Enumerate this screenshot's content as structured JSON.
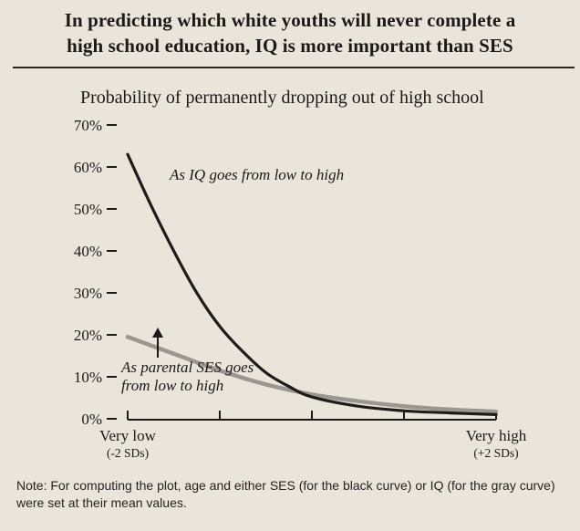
{
  "header": {
    "title_line1": "In predicting which white youths will never complete a",
    "title_line2": "high school education, IQ is more important than SES"
  },
  "chart_data": {
    "type": "line",
    "subtitle": "Probability of permanently dropping out of high school",
    "ylim": [
      0,
      70
    ],
    "y_ticks": [
      "0%",
      "10%",
      "20%",
      "30%",
      "40%",
      "50%",
      "60%",
      "70%"
    ],
    "x_ticks": [
      {
        "label": "Very low",
        "sublabel": "(-2 SDs)"
      },
      {
        "label": "",
        "sublabel": ""
      },
      {
        "label": "",
        "sublabel": ""
      },
      {
        "label": "",
        "sublabel": ""
      },
      {
        "label": "Very high",
        "sublabel": "(+2 SDs)"
      }
    ],
    "xlim": [
      -2,
      2
    ],
    "series": [
      {
        "name": "IQ",
        "color": "#1e1c1a",
        "x": [
          -2,
          -1.75,
          -1.5,
          -1.25,
          -1,
          -0.75,
          -0.5,
          -0.25,
          0,
          0.5,
          1,
          1.5,
          2
        ],
        "y": [
          63,
          51,
          40,
          30,
          22,
          16,
          11,
          7.7,
          5.2,
          3.0,
          1.9,
          1.4,
          1.0
        ]
      },
      {
        "name": "parental SES",
        "color": "#9a9690",
        "x": [
          -2,
          -1.5,
          -1,
          -0.5,
          0,
          0.5,
          1,
          1.5,
          2
        ],
        "y": [
          19.5,
          15.5,
          11.5,
          8.2,
          5.8,
          4.2,
          3.0,
          2.2,
          1.7
        ]
      }
    ],
    "annotations": [
      {
        "text": "As IQ goes from low to high",
        "target": "IQ"
      },
      {
        "text_line1": "As parental SES goes",
        "text_line2": "from low to high",
        "target": "parental SES"
      }
    ]
  },
  "note": {
    "lead": "Note:",
    "text": " For computing the plot, age and either SES (for the black curve) or IQ (for the gray curve) were set at their mean values."
  }
}
